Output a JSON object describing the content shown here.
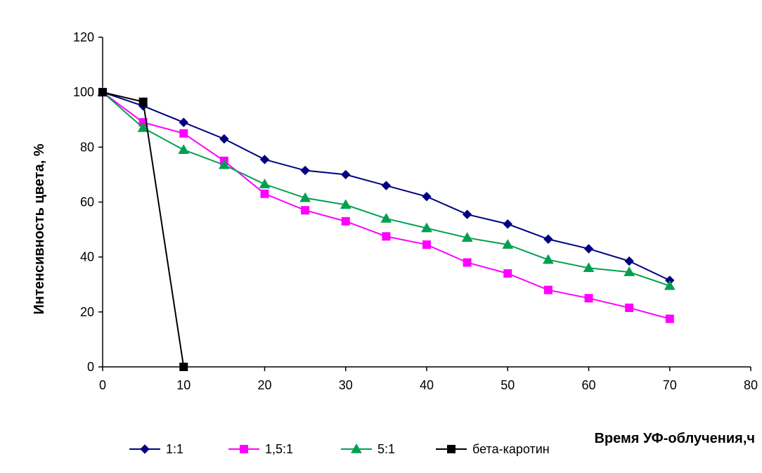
{
  "chart_data": {
    "type": "line",
    "title": "",
    "xlabel": "Время УФ-облучения,ч",
    "ylabel": "Интенсивность цвета, %",
    "xlim": [
      0,
      80
    ],
    "ylim": [
      0,
      120
    ],
    "xticks": [
      0,
      10,
      20,
      30,
      40,
      50,
      60,
      70,
      80
    ],
    "yticks": [
      0,
      20,
      40,
      60,
      80,
      100,
      120
    ],
    "grid": false,
    "legend_position": "bottom",
    "series": [
      {
        "name": "1:1",
        "color": "#000080",
        "marker": "diamond",
        "x": [
          0,
          5,
          10,
          15,
          20,
          25,
          30,
          35,
          40,
          45,
          50,
          55,
          60,
          65,
          70
        ],
        "y": [
          100,
          95,
          89,
          83,
          75.5,
          71.5,
          70,
          66,
          62,
          55.5,
          52,
          46.5,
          43,
          38.5,
          31.5
        ]
      },
      {
        "name": "1,5:1",
        "color": "#ff00ff",
        "marker": "square",
        "x": [
          0,
          5,
          10,
          15,
          20,
          25,
          30,
          35,
          40,
          45,
          50,
          55,
          60,
          65,
          70
        ],
        "y": [
          100,
          89,
          85,
          75,
          63,
          57,
          53,
          47.5,
          44.5,
          38,
          34,
          28,
          25,
          21.5,
          17.5
        ]
      },
      {
        "name": "5:1",
        "color": "#00a050",
        "marker": "triangle",
        "x": [
          0,
          5,
          10,
          15,
          20,
          25,
          30,
          35,
          40,
          45,
          50,
          55,
          60,
          65,
          70
        ],
        "y": [
          100,
          87,
          79,
          73.5,
          66.5,
          61.5,
          59,
          54,
          50.5,
          47,
          44.5,
          39,
          36,
          34.5,
          29.5
        ]
      },
      {
        "name": "бета-каротин",
        "color": "#000000",
        "marker": "square",
        "x": [
          0,
          5,
          10
        ],
        "y": [
          100,
          96.5,
          0
        ]
      }
    ]
  }
}
